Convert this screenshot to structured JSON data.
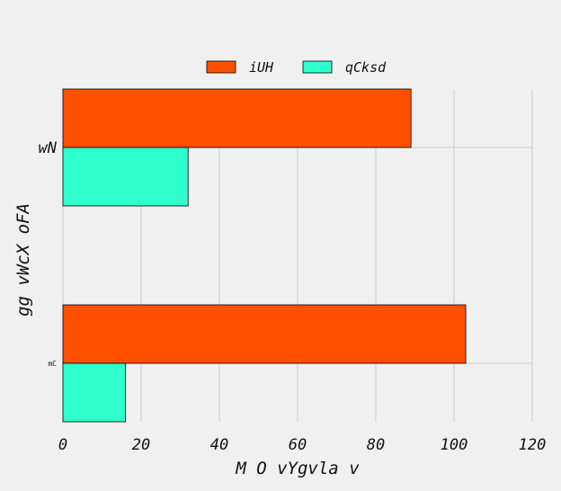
{
  "chart_data": {
    "type": "bar",
    "orientation": "horizontal",
    "categories": [
      "wN",
      "mC"
    ],
    "series": [
      {
        "name": "iUH",
        "values": [
          89,
          103
        ],
        "color": "#ff5000"
      },
      {
        "name": "qCksd",
        "values": [
          32,
          16
        ],
        "color": "#2effcc"
      }
    ],
    "xlabel": "M O vYgvla v",
    "ylabel": "gg vWcX oFA",
    "xlim": [
      0,
      120
    ],
    "xticks": [
      0,
      20,
      40,
      60,
      80,
      100,
      120
    ],
    "grid": true,
    "legend": "top-center"
  },
  "colors": {
    "background": "#f0f0f0",
    "grid": "#cbcbcb",
    "bar_edge": "#000000"
  }
}
